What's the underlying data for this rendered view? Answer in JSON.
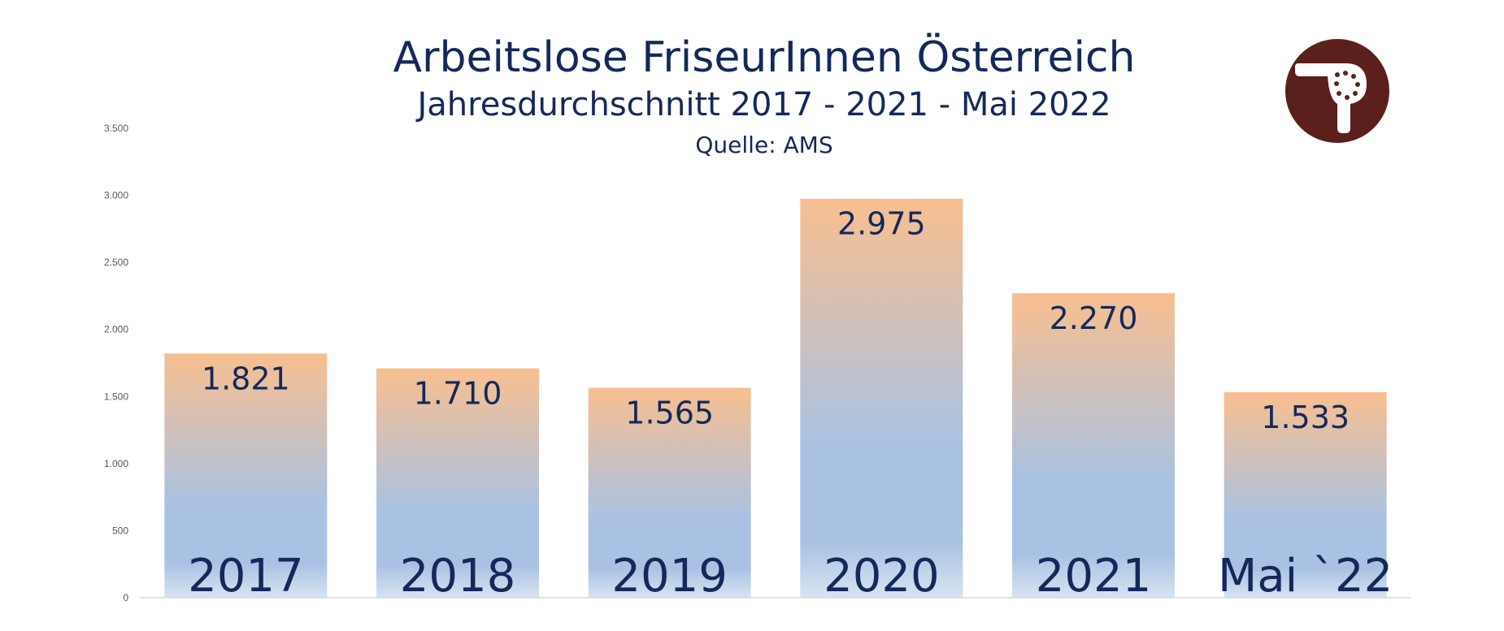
{
  "chart_data": {
    "type": "bar",
    "title": "Arbeitslose FriseurInnen Österreich",
    "subtitle": "Jahresdurchschnitt 2017 - 2021 - Mai 2022",
    "source": "Quelle: AMS",
    "categories": [
      "2017",
      "2018",
      "2019",
      "2020",
      "2021",
      "Mai `22"
    ],
    "values": [
      1821,
      1710,
      1565,
      2975,
      2270,
      1533
    ],
    "value_labels": [
      "1.821",
      "1.710",
      "1.565",
      "2.975",
      "2.270",
      "1.533"
    ],
    "ylim": [
      0,
      3500
    ],
    "yticks": [
      0,
      500,
      1000,
      1500,
      2000,
      2500,
      3000,
      3500
    ],
    "ytick_labels": [
      "0",
      "500",
      "1.000",
      "1.500",
      "2.000",
      "2.500",
      "3.000",
      "3.500"
    ],
    "grid": false,
    "colors": {
      "bar_top": "#f8bf90",
      "bar_mid": "#a9c2e3",
      "bar_bottom": "#d7e3f1",
      "text": "#14285a",
      "logo": "#5b1f1c"
    }
  },
  "logo": {
    "icon": "hair-dryer-icon"
  }
}
